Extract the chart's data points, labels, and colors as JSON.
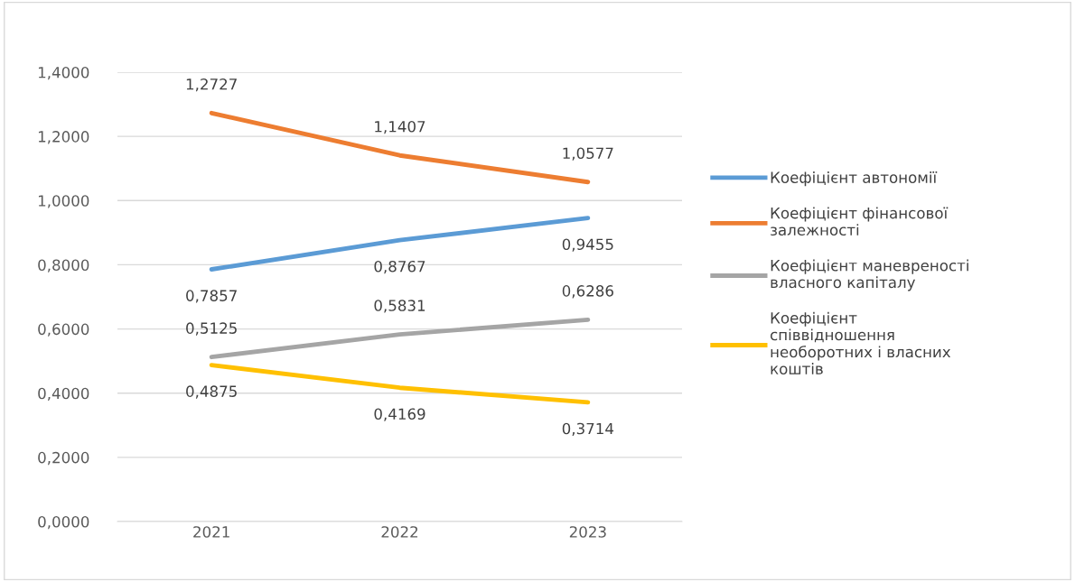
{
  "chart_data": {
    "type": "line",
    "categories": [
      "2021",
      "2022",
      "2023"
    ],
    "series": [
      {
        "name": "Коефіцієнт автономії",
        "color": "#5b9bd5",
        "values": [
          0.7857,
          0.8767,
          0.9455
        ],
        "value_labels": [
          "0,7857",
          "0,8767",
          "0,9455"
        ]
      },
      {
        "name": "Коефіцієнт фінансової залежності",
        "color": "#ed7d31",
        "values": [
          1.2727,
          1.1407,
          1.0577
        ],
        "value_labels": [
          "1,2727",
          "1,1407",
          "1,0577"
        ]
      },
      {
        "name": "Коефіцієнт маневреності власного капіталу",
        "color": "#a5a5a5",
        "values": [
          0.5125,
          0.5831,
          0.6286
        ],
        "value_labels": [
          "0,5125",
          "0,5831",
          "0,6286"
        ]
      },
      {
        "name": "Коефіцієнт співвідношення необоротних і власних коштів",
        "color": "#ffc000",
        "values": [
          0.4875,
          0.4169,
          0.3714
        ],
        "value_labels": [
          "0,4875",
          "0,4169",
          "0,3714"
        ]
      }
    ],
    "ylim": [
      0,
      1.4
    ],
    "yticks": [
      {
        "value": 0,
        "label": "0,0000"
      },
      {
        "value": 0.2,
        "label": "0,2000"
      },
      {
        "value": 0.4,
        "label": "0,4000"
      },
      {
        "value": 0.6,
        "label": "0,6000"
      },
      {
        "value": 0.8,
        "label": "0,8000"
      },
      {
        "value": 1.0,
        "label": "1,0000"
      },
      {
        "value": 1.2,
        "label": "1,2000"
      },
      {
        "value": 1.4,
        "label": "1,4000"
      }
    ],
    "grid": "y",
    "legend": "right",
    "marker": "none",
    "line_style": "solid"
  }
}
